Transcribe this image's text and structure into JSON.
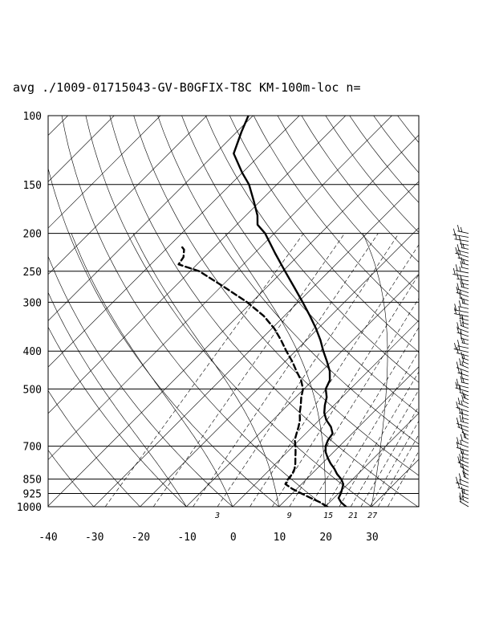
{
  "chart_data": {
    "type": "line",
    "subtype": "skew-t log-p diagram",
    "title": "avg ./1009-01715043-GV-B0GFIX-T8C KM-100m-loc n=",
    "xlabel": "",
    "ylabel": "",
    "y_scale": "log",
    "y_reversed": true,
    "xlim": [
      -40,
      40
    ],
    "ylim": [
      1000,
      100
    ],
    "x_ticks": [
      "-40",
      "-30",
      "-20",
      "-10",
      "0",
      "10",
      "20",
      "30"
    ],
    "y_ticks": [
      "100",
      "150",
      "200",
      "250",
      "300",
      "400",
      "500",
      "700",
      "850",
      "925",
      "1000"
    ],
    "mixing_ratio_labels": [
      "3",
      "9",
      "15",
      "21",
      "27"
    ],
    "grid": true,
    "series": [
      {
        "line": "solid",
        "points": [
          {
            "p": 1000,
            "t": 24.5
          },
          {
            "p": 975,
            "t": 22.5
          },
          {
            "p": 950,
            "t": 21.0
          },
          {
            "p": 925,
            "t": 20.5
          },
          {
            "p": 900,
            "t": 19.8
          },
          {
            "p": 875,
            "t": 19.0
          },
          {
            "p": 850,
            "t": 17.5
          },
          {
            "p": 825,
            "t": 15.5
          },
          {
            "p": 800,
            "t": 13.8
          },
          {
            "p": 775,
            "t": 11.8
          },
          {
            "p": 750,
            "t": 10.0
          },
          {
            "p": 725,
            "t": 8.3
          },
          {
            "p": 700,
            "t": 7.0
          },
          {
            "p": 675,
            "t": 6.2
          },
          {
            "p": 650,
            "t": 5.8
          },
          {
            "p": 625,
            "t": 4.0
          },
          {
            "p": 600,
            "t": 1.5
          },
          {
            "p": 575,
            "t": -0.5
          },
          {
            "p": 550,
            "t": -2.0
          },
          {
            "p": 525,
            "t": -3.3
          },
          {
            "p": 500,
            "t": -5.3
          },
          {
            "p": 475,
            "t": -6.3
          },
          {
            "p": 450,
            "t": -8.3
          },
          {
            "p": 425,
            "t": -11.0
          },
          {
            "p": 400,
            "t": -14.0
          },
          {
            "p": 375,
            "t": -17.0
          },
          {
            "p": 350,
            "t": -20.5
          },
          {
            "p": 325,
            "t": -24.5
          },
          {
            "p": 300,
            "t": -29.0
          },
          {
            "p": 275,
            "t": -34.0
          },
          {
            "p": 250,
            "t": -39.5
          },
          {
            "p": 225,
            "t": -45.5
          },
          {
            "p": 200,
            "t": -52.0
          },
          {
            "p": 190,
            "t": -55.5
          },
          {
            "p": 180,
            "t": -57.5
          },
          {
            "p": 165,
            "t": -61.5
          },
          {
            "p": 150,
            "t": -66.0
          },
          {
            "p": 140,
            "t": -70.0
          },
          {
            "p": 125,
            "t": -76.0
          },
          {
            "p": 110,
            "t": -79.0
          },
          {
            "p": 100,
            "t": -81.0
          }
        ]
      },
      {
        "line": "dashed",
        "points": [
          {
            "p": 1000,
            "t": 20.5
          },
          {
            "p": 975,
            "t": 18.0
          },
          {
            "p": 950,
            "t": 15.0
          },
          {
            "p": 925,
            "t": 12.0
          },
          {
            "p": 900,
            "t": 9.0
          },
          {
            "p": 875,
            "t": 6.5
          },
          {
            "p": 850,
            "t": 6.0
          },
          {
            "p": 825,
            "t": 5.8
          },
          {
            "p": 800,
            "t": 5.2
          },
          {
            "p": 775,
            "t": 4.2
          },
          {
            "p": 750,
            "t": 3.0
          },
          {
            "p": 725,
            "t": 1.8
          },
          {
            "p": 700,
            "t": 0.5
          },
          {
            "p": 675,
            "t": -1.0
          },
          {
            "p": 650,
            "t": -2.0
          },
          {
            "p": 625,
            "t": -3.0
          },
          {
            "p": 600,
            "t": -4.2
          },
          {
            "p": 575,
            "t": -5.8
          },
          {
            "p": 550,
            "t": -7.2
          },
          {
            "p": 525,
            "t": -8.8
          },
          {
            "p": 500,
            "t": -10.2
          },
          {
            "p": 475,
            "t": -12.5
          },
          {
            "p": 450,
            "t": -15.5
          },
          {
            "p": 425,
            "t": -18.5
          },
          {
            "p": 400,
            "t": -22.0
          },
          {
            "p": 375,
            "t": -25.5
          },
          {
            "p": 350,
            "t": -29.5
          },
          {
            "p": 325,
            "t": -34.5
          },
          {
            "p": 300,
            "t": -41.0
          },
          {
            "p": 275,
            "t": -49.0
          },
          {
            "p": 250,
            "t": -58.0
          },
          {
            "p": 240,
            "t": -64.0
          },
          {
            "p": 230,
            "t": -64.5
          },
          {
            "p": 220,
            "t": -66.0
          },
          {
            "p": 215,
            "t": -67.5
          }
        ]
      }
    ],
    "wind_barbs": {
      "p_top": 200,
      "p_bottom": 1000,
      "count": 70
    }
  }
}
